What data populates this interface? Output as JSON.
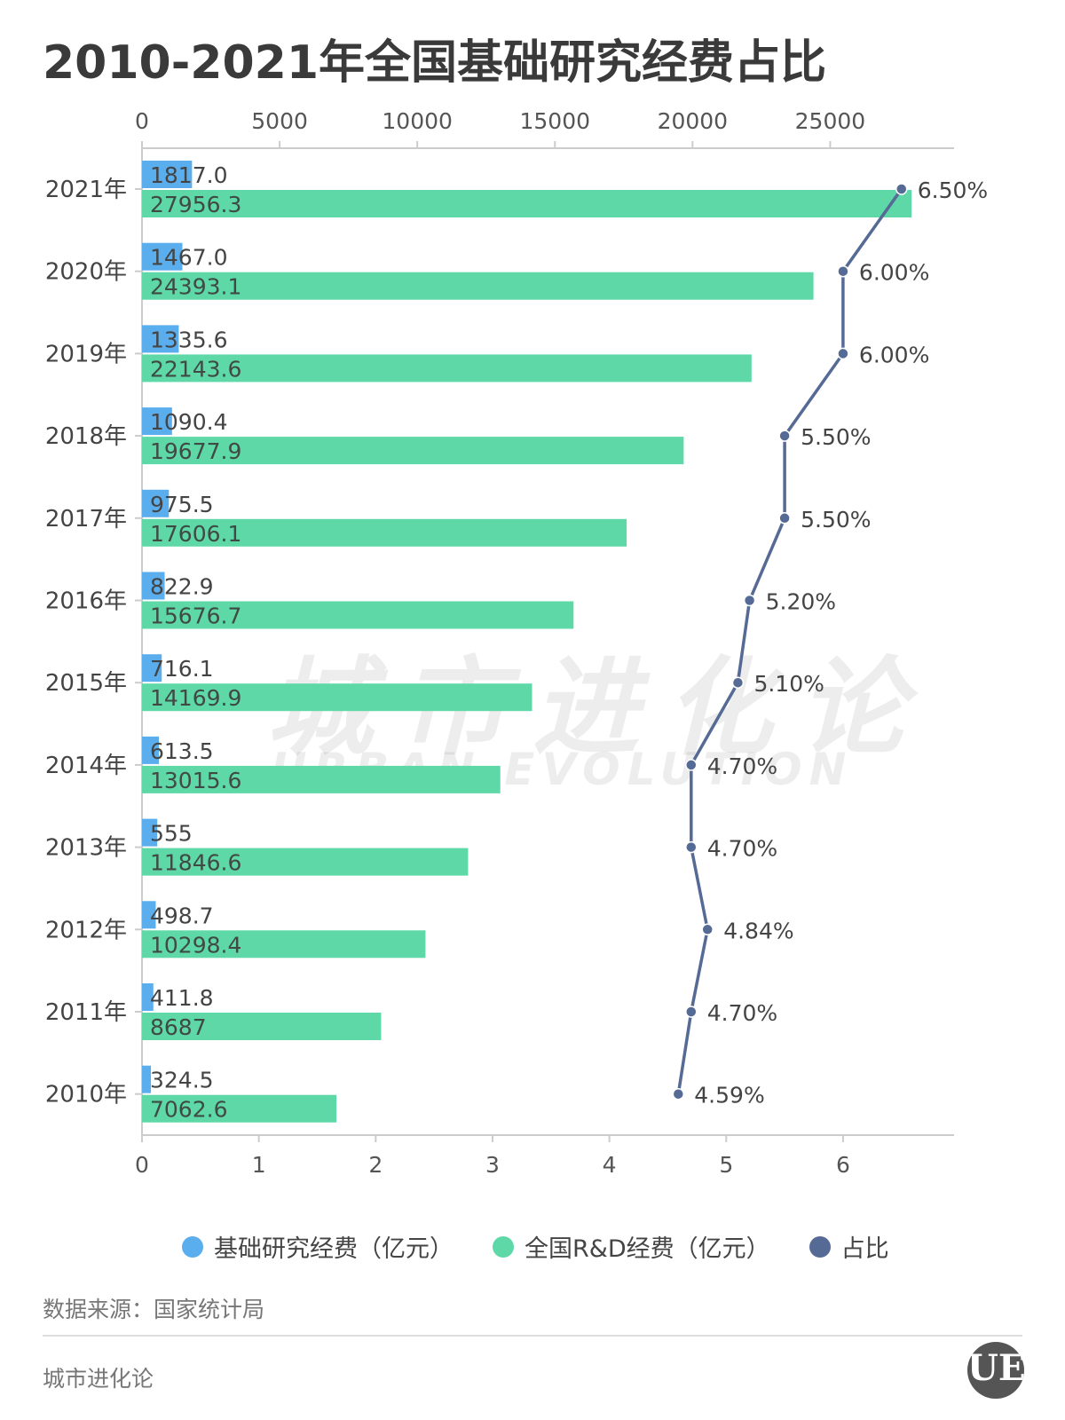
{
  "title": "2010-2021年全国基础研究经费占比",
  "source": "数据来源：国家统计局",
  "brand": "城市进化论",
  "watermark": {
    "cn": "城市进化论",
    "en": "URBAN EVOLUTION"
  },
  "logo": {
    "letters": "UE",
    "caption": "URBAN EVOLUTION"
  },
  "colors": {
    "basic": "#5aaeee",
    "total": "#5fd8a8",
    "ratio": "#566a96"
  },
  "legend": [
    {
      "label": "基础研究经费（亿元）",
      "color": "#5aaeee"
    },
    {
      "label": "全国R&D经费（亿元）",
      "color": "#5fd8a8"
    },
    {
      "label": "占比",
      "color": "#566a96"
    }
  ],
  "chart_data": {
    "type": "bar",
    "orientation": "horizontal",
    "categories": [
      "2021年",
      "2020年",
      "2019年",
      "2018年",
      "2017年",
      "2016年",
      "2015年",
      "2014年",
      "2013年",
      "2012年",
      "2011年",
      "2010年"
    ],
    "series": [
      {
        "name": "基础研究经费（亿元）",
        "axis": "top",
        "values": [
          1817.0,
          1467.0,
          1335.6,
          1090.4,
          975.5,
          822.9,
          716.1,
          613.5,
          555,
          498.7,
          411.8,
          324.5
        ],
        "labels": [
          "1817.0",
          "1467.0",
          "1335.6",
          "1090.4",
          "975.5",
          "822.9",
          "716.1",
          "613.5",
          "555",
          "498.7",
          "411.8",
          "324.5"
        ]
      },
      {
        "name": "全国R&D经费（亿元）",
        "axis": "top",
        "values": [
          27956.3,
          24393.1,
          22143.6,
          19677.9,
          17606.1,
          15676.7,
          14169.9,
          13015.6,
          11846.6,
          10298.4,
          8687,
          7062.6
        ],
        "labels": [
          "27956.3",
          "24393.1",
          "22143.6",
          "19677.9",
          "17606.1",
          "15676.7",
          "14169.9",
          "13015.6",
          "11846.6",
          "10298.4",
          "8687",
          "7062.6"
        ]
      },
      {
        "name": "占比",
        "type": "line",
        "axis": "bottom",
        "values": [
          6.5,
          6.0,
          6.0,
          5.5,
          5.5,
          5.2,
          5.1,
          4.7,
          4.7,
          4.84,
          4.7,
          4.59
        ],
        "labels": [
          "6.50%",
          "6.00%",
          "6.00%",
          "5.50%",
          "5.50%",
          "5.20%",
          "5.10%",
          "4.70%",
          "4.70%",
          "4.84%",
          "4.70%",
          "4.59%"
        ]
      }
    ],
    "top_axis": {
      "range": [
        0,
        29500
      ],
      "ticks": [
        "0",
        "5000",
        "10000",
        "15000",
        "20000",
        "25000"
      ]
    },
    "bottom_axis": {
      "range": [
        0,
        6.95
      ],
      "ticks": [
        "0",
        "1",
        "2",
        "3",
        "4",
        "5",
        "6"
      ]
    },
    "grid": false,
    "legend_position": "bottom"
  }
}
